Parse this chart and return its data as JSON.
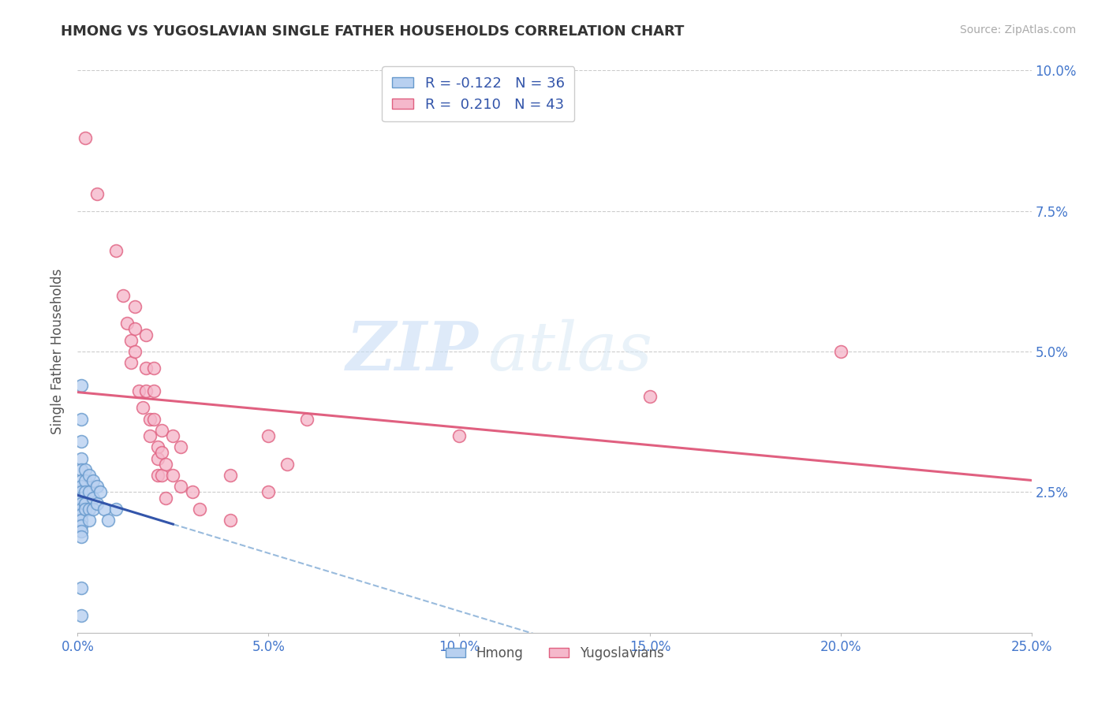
{
  "title": "HMONG VS YUGOSLAVIAN SINGLE FATHER HOUSEHOLDS CORRELATION CHART",
  "source": "Source: ZipAtlas.com",
  "ylabel_label": "Single Father Households",
  "legend_label1": "Hmong",
  "legend_label2": "Yugoslavians",
  "R_hmong": -0.122,
  "N_hmong": 36,
  "R_yugo": 0.21,
  "N_yugo": 43,
  "xlim": [
    0.0,
    0.25
  ],
  "ylim": [
    0.0,
    0.1
  ],
  "xticks": [
    0.0,
    0.05,
    0.1,
    0.15,
    0.2,
    0.25
  ],
  "xtick_labels": [
    "0.0%",
    "",
    "",
    "",
    "",
    "25.0%"
  ],
  "yticks": [
    0.0,
    0.025,
    0.05,
    0.075,
    0.1
  ],
  "ytick_labels_right": [
    "",
    "2.5%",
    "5.0%",
    "7.5%",
    "10.0%"
  ],
  "watermark_zip": "ZIP",
  "watermark_atlas": "atlas",
  "hmong_color": "#b8d0f0",
  "hmong_edge_color": "#6699cc",
  "yugo_color": "#f5b8cb",
  "yugo_edge_color": "#e06080",
  "hmong_line_color": "#3355aa",
  "yugo_line_color": "#e06080",
  "dashed_color": "#99bbdd",
  "hmong_scatter": [
    [
      0.001,
      0.044
    ],
    [
      0.001,
      0.038
    ],
    [
      0.001,
      0.034
    ],
    [
      0.001,
      0.031
    ],
    [
      0.001,
      0.029
    ],
    [
      0.001,
      0.027
    ],
    [
      0.001,
      0.026
    ],
    [
      0.001,
      0.025
    ],
    [
      0.001,
      0.024
    ],
    [
      0.001,
      0.023
    ],
    [
      0.001,
      0.022
    ],
    [
      0.001,
      0.021
    ],
    [
      0.001,
      0.02
    ],
    [
      0.001,
      0.019
    ],
    [
      0.001,
      0.018
    ],
    [
      0.001,
      0.017
    ],
    [
      0.002,
      0.029
    ],
    [
      0.002,
      0.027
    ],
    [
      0.002,
      0.025
    ],
    [
      0.002,
      0.023
    ],
    [
      0.002,
      0.022
    ],
    [
      0.003,
      0.028
    ],
    [
      0.003,
      0.025
    ],
    [
      0.003,
      0.022
    ],
    [
      0.003,
      0.02
    ],
    [
      0.004,
      0.027
    ],
    [
      0.004,
      0.024
    ],
    [
      0.004,
      0.022
    ],
    [
      0.005,
      0.026
    ],
    [
      0.005,
      0.023
    ],
    [
      0.006,
      0.025
    ],
    [
      0.007,
      0.022
    ],
    [
      0.008,
      0.02
    ],
    [
      0.01,
      0.022
    ],
    [
      0.001,
      0.008
    ],
    [
      0.001,
      0.003
    ]
  ],
  "yugo_scatter": [
    [
      0.002,
      0.088
    ],
    [
      0.005,
      0.078
    ],
    [
      0.01,
      0.068
    ],
    [
      0.012,
      0.06
    ],
    [
      0.013,
      0.055
    ],
    [
      0.014,
      0.052
    ],
    [
      0.014,
      0.048
    ],
    [
      0.015,
      0.058
    ],
    [
      0.015,
      0.054
    ],
    [
      0.015,
      0.05
    ],
    [
      0.016,
      0.043
    ],
    [
      0.017,
      0.04
    ],
    [
      0.018,
      0.053
    ],
    [
      0.018,
      0.047
    ],
    [
      0.018,
      0.043
    ],
    [
      0.019,
      0.038
    ],
    [
      0.019,
      0.035
    ],
    [
      0.02,
      0.047
    ],
    [
      0.02,
      0.043
    ],
    [
      0.02,
      0.038
    ],
    [
      0.021,
      0.033
    ],
    [
      0.021,
      0.031
    ],
    [
      0.021,
      0.028
    ],
    [
      0.022,
      0.036
    ],
    [
      0.022,
      0.032
    ],
    [
      0.022,
      0.028
    ],
    [
      0.023,
      0.024
    ],
    [
      0.023,
      0.03
    ],
    [
      0.025,
      0.035
    ],
    [
      0.025,
      0.028
    ],
    [
      0.027,
      0.033
    ],
    [
      0.027,
      0.026
    ],
    [
      0.03,
      0.025
    ],
    [
      0.032,
      0.022
    ],
    [
      0.04,
      0.028
    ],
    [
      0.04,
      0.02
    ],
    [
      0.05,
      0.035
    ],
    [
      0.05,
      0.025
    ],
    [
      0.055,
      0.03
    ],
    [
      0.06,
      0.038
    ],
    [
      0.1,
      0.035
    ],
    [
      0.15,
      0.042
    ],
    [
      0.2,
      0.05
    ]
  ]
}
